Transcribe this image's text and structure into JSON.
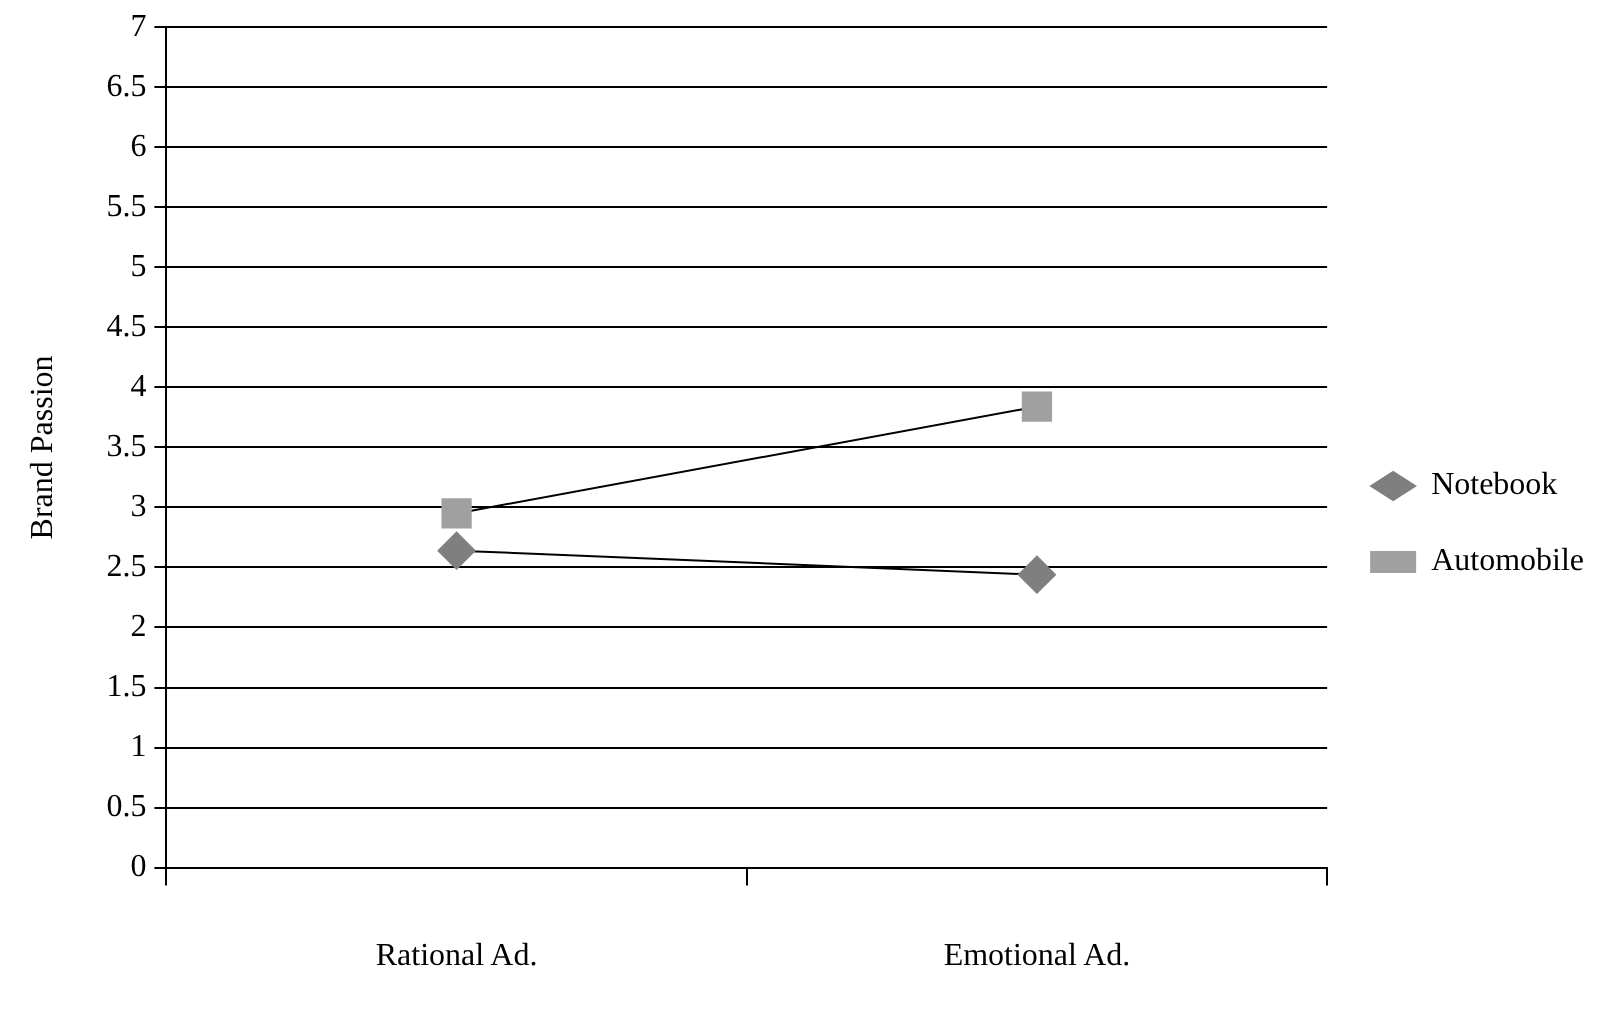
{
  "chart_data": {
    "type": "line",
    "ylabel": "Brand Passion",
    "categories": [
      "Rational Ad.",
      "Emotional Ad."
    ],
    "series": [
      {
        "name": "Notebook",
        "color": "#7f7f7f",
        "marker": "diamond",
        "values": [
          2.64,
          2.44
        ]
      },
      {
        "name": "Automobile",
        "color": "#a0a0a0",
        "marker": "square",
        "values": [
          2.95,
          3.84
        ]
      }
    ],
    "ylim": [
      0,
      7
    ],
    "yticks": [
      0,
      0.5,
      1,
      1.5,
      2,
      2.5,
      3,
      3.5,
      4,
      4.5,
      5,
      5.5,
      6,
      6.5,
      7
    ],
    "grid": "y",
    "legend": "right"
  }
}
